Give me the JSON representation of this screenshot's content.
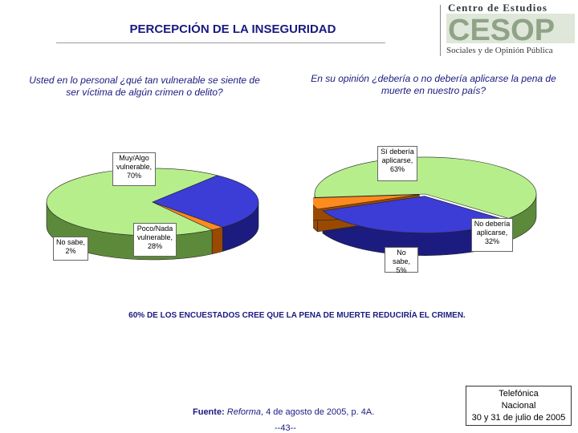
{
  "title": "PERCEPCIÓN DE LA INSEGURIDAD",
  "logo": {
    "line1": "Centro de Estudios",
    "mark": "CESOP",
    "line2": "Sociales y de Opinión Pública",
    "colors": {
      "text": "#3a3a3a",
      "mark": "#8fa386",
      "mark_dark": "#5f6f5a"
    }
  },
  "questions": {
    "q1": "Usted en lo personal ¿qué tan vulnerable se siente de ser víctima de algún crimen o delito?",
    "q2": "En su opinión ¿debería o no debería aplicarse la pena de muerte en nuestro país?"
  },
  "conclusion": "60% DE LOS ENCUESTADOS CREE QUE LA PENA DE MUERTE REDUCIRÍA EL CRIMEN.",
  "source": {
    "label": "Fuente:",
    "publication": "Reforma",
    "rest": ", 4 de agosto de 2005, p. 4A."
  },
  "page_number": "--43--",
  "methodology": {
    "line1": "Telefónica",
    "line2": "Nacional",
    "line3": "30 y 31 de julio de 2005"
  },
  "chart_data": [
    {
      "type": "pie",
      "style": "3d",
      "slices": [
        {
          "label_lines": [
            "Muy/Algo",
            "vulnerable,",
            "70%"
          ],
          "value": 70,
          "color": "#b6ee8c",
          "side": "#5d8a3a"
        },
        {
          "label_lines": [
            "Poco/Nada",
            "vulnerable,",
            "28%"
          ],
          "value": 28,
          "color": "#3c3cd6",
          "side": "#1c1c80"
        },
        {
          "label_lines": [
            "No sabe,",
            "2%"
          ],
          "value": 2,
          "color": "#ff8a1e",
          "side": "#9a4a00"
        }
      ]
    },
    {
      "type": "pie",
      "style": "3d",
      "slices": [
        {
          "label_lines": [
            "Sí debería",
            "aplicarse,",
            "63%"
          ],
          "value": 63,
          "color": "#b6ee8c",
          "side": "#5d8a3a"
        },
        {
          "label_lines": [
            "No debería",
            "aplicarse,",
            "32%"
          ],
          "value": 32,
          "color": "#3c3cd6",
          "side": "#1c1c80"
        },
        {
          "label_lines": [
            "No sabe,",
            "5%"
          ],
          "value": 5,
          "color": "#ff8a1e",
          "side": "#9a4a00"
        }
      ]
    }
  ]
}
